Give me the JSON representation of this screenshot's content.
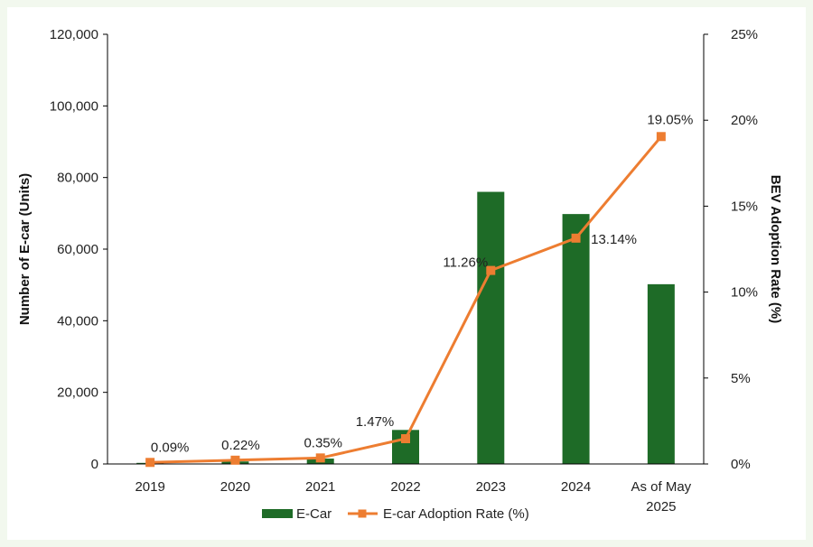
{
  "colors": {
    "bar": "#1e6b27",
    "line": "#ed7d31",
    "axis": "#000000",
    "background": "#f2f8ee"
  },
  "chart_data": {
    "type": "bar+line",
    "categories": [
      [
        "2019"
      ],
      [
        "2020"
      ],
      [
        "2021"
      ],
      [
        "2022"
      ],
      [
        "2023"
      ],
      [
        "2024"
      ],
      [
        "As of May",
        "2025"
      ]
    ],
    "series": [
      {
        "name": "E-Car",
        "type": "bar",
        "axis": "left",
        "values": [
          300,
          700,
          1500,
          9500,
          76000,
          69800,
          50200
        ]
      },
      {
        "name": "E-car Adoption Rate (%)",
        "type": "line",
        "axis": "right",
        "values": [
          0.09,
          0.22,
          0.35,
          1.47,
          11.26,
          13.14,
          19.05
        ]
      }
    ],
    "data_labels": [
      "0.09%",
      "0.22%",
      "0.35%",
      "1.47%",
      "11.26%",
      "13.14%",
      "19.05%"
    ],
    "ylabel": "Number of E-car (Units)",
    "y2label": "BEV Adoption Rate (%)",
    "ylim": [
      0,
      120000
    ],
    "y2lim": [
      0,
      25
    ],
    "yticks": [
      "0",
      "20,000",
      "40,000",
      "60,000",
      "80,000",
      "100,000",
      "120,000"
    ],
    "y2ticks": [
      "0%",
      "5%",
      "10%",
      "15%",
      "20%",
      "25%"
    ],
    "grid": false,
    "legend_position": "bottom"
  }
}
